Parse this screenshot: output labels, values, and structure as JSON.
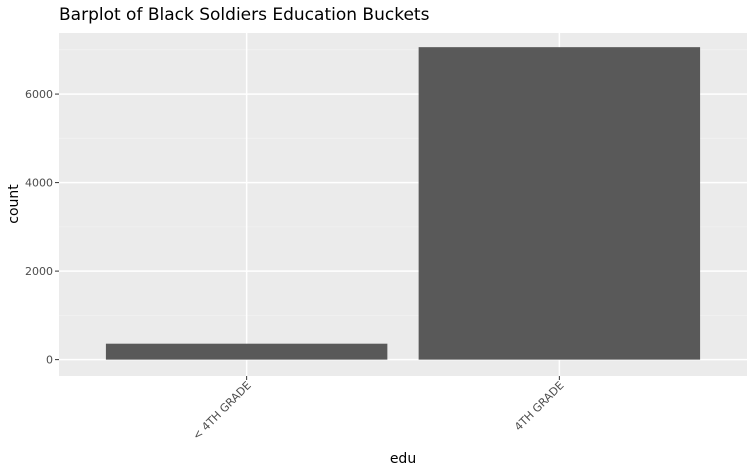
{
  "chart_data": {
    "type": "bar",
    "title": "Barplot of Black Soldiers Education Buckets",
    "xlabel": "edu",
    "ylabel": "count",
    "categories": [
      "< 4TH GRADE",
      "4TH GRADE"
    ],
    "values": [
      360,
      7060
    ],
    "ylim": [
      -370,
      7380
    ],
    "yticks": [
      0,
      2000,
      4000,
      6000
    ],
    "grid": true,
    "legend": "none",
    "colors": {
      "bar": "#595959",
      "panel": "#ebebeb",
      "grid_major": "#ffffff",
      "grid_minor": "#f2f2f2",
      "tick": "#333333"
    }
  }
}
